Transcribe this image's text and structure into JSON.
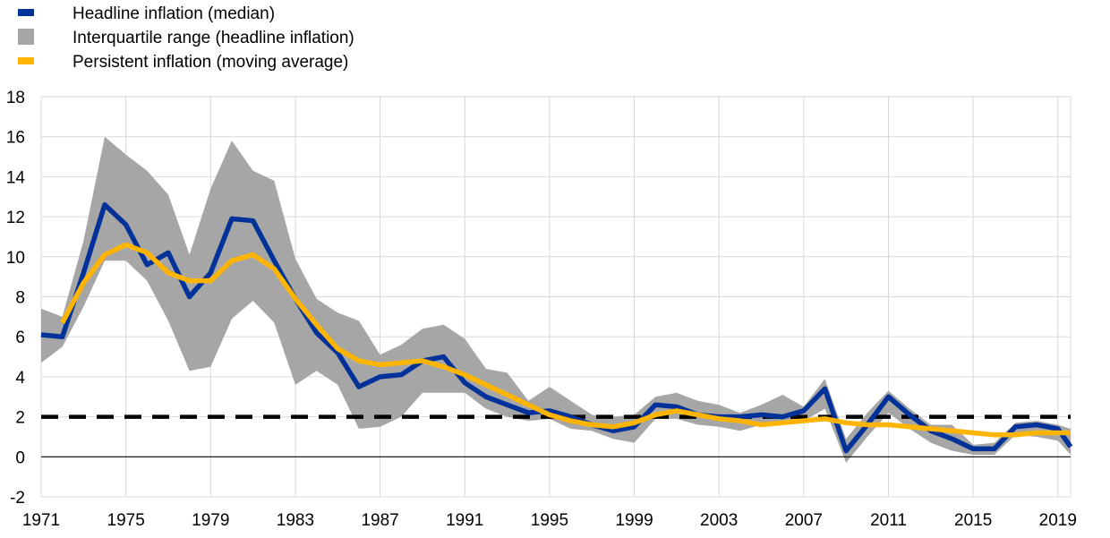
{
  "chart_data": {
    "type": "line",
    "title": "",
    "xlabel": "",
    "ylabel": "",
    "xlim": [
      1971,
      2019.6
    ],
    "ylim": [
      -2,
      18
    ],
    "x_ticks": [
      "1971",
      "1975",
      "1979",
      "1983",
      "1987",
      "1991",
      "1995",
      "1999",
      "2003",
      "2007",
      "2011",
      "2015",
      "2019"
    ],
    "y_ticks": [
      "18",
      "16",
      "14",
      "12",
      "10",
      "8",
      "6",
      "4",
      "2",
      "0",
      "-2"
    ],
    "grid": true,
    "legend_position": "top-left",
    "legend": [
      {
        "label": "Headline inflation (median)",
        "color": "#003299",
        "kind": "line"
      },
      {
        "label": "Interquartile range (headline inflation)",
        "color": "#a6a6a6",
        "kind": "area"
      },
      {
        "label": "Persistent inflation (moving average)",
        "color": "#ffb400",
        "kind": "line"
      }
    ],
    "x": [
      1971,
      1972,
      1973,
      1974,
      1975,
      1976,
      1977,
      1978,
      1979,
      1980,
      1981,
      1982,
      1983,
      1984,
      1985,
      1986,
      1987,
      1988,
      1989,
      1990,
      1991,
      1992,
      1993,
      1994,
      1995,
      1996,
      1997,
      1998,
      1999,
      2000,
      2001,
      2002,
      2003,
      2004,
      2005,
      2006,
      2007,
      2008,
      2009,
      2010,
      2011,
      2012,
      2013,
      2014,
      2015,
      2016,
      2017,
      2018,
      2019,
      2019.6
    ],
    "series": [
      {
        "name": "Interquartile range (headline inflation)",
        "kind": "band",
        "color": "#a6a6a6",
        "upper": [
          7.4,
          7.0,
          10.8,
          16.0,
          15.1,
          14.3,
          13.1,
          10.1,
          13.4,
          15.8,
          14.3,
          13.8,
          9.9,
          7.9,
          7.2,
          6.8,
          5.1,
          5.6,
          6.4,
          6.6,
          5.9,
          4.4,
          4.2,
          2.8,
          3.5,
          2.8,
          2.1,
          2.0,
          2.1,
          3.0,
          3.2,
          2.8,
          2.6,
          2.2,
          2.6,
          3.1,
          2.5,
          3.9,
          0.9,
          2.2,
          3.3,
          2.4,
          1.6,
          1.6,
          0.6,
          0.7,
          1.7,
          1.8,
          1.6,
          1.4
        ],
        "lower": [
          4.7,
          5.5,
          7.5,
          9.8,
          9.8,
          8.8,
          6.8,
          4.3,
          4.5,
          6.9,
          7.8,
          6.7,
          3.6,
          4.3,
          3.6,
          1.4,
          1.5,
          2.0,
          3.2,
          3.2,
          3.2,
          2.4,
          2.0,
          1.8,
          1.9,
          1.4,
          1.3,
          0.9,
          0.7,
          1.9,
          1.9,
          1.6,
          1.5,
          1.3,
          1.6,
          1.7,
          1.8,
          2.4,
          -0.3,
          1.0,
          2.2,
          1.4,
          0.7,
          0.3,
          0.1,
          0.1,
          1.1,
          1.0,
          0.8,
          0.1
        ]
      },
      {
        "name": "Headline inflation (median)",
        "kind": "line",
        "color": "#003299",
        "values": [
          6.1,
          6.0,
          9.2,
          12.6,
          11.6,
          9.6,
          10.2,
          8.0,
          9.2,
          11.9,
          11.8,
          9.8,
          7.9,
          6.2,
          5.2,
          3.5,
          4.0,
          4.1,
          4.8,
          5.0,
          3.7,
          3.0,
          2.6,
          2.2,
          2.3,
          2.0,
          1.6,
          1.3,
          1.5,
          2.6,
          2.5,
          2.1,
          2.0,
          2.0,
          2.1,
          2.0,
          2.3,
          3.4,
          0.3,
          1.6,
          3.0,
          2.1,
          1.3,
          0.9,
          0.4,
          0.4,
          1.5,
          1.6,
          1.4,
          0.5
        ]
      },
      {
        "name": "Persistent inflation (moving average)",
        "kind": "line",
        "color": "#ffb400",
        "x_start": 1972,
        "values": [
          null,
          6.7,
          8.7,
          10.1,
          10.6,
          10.2,
          9.2,
          8.8,
          8.8,
          9.8,
          10.1,
          9.4,
          7.9,
          6.6,
          5.4,
          4.8,
          4.6,
          4.7,
          4.8,
          4.5,
          4.1,
          3.6,
          3.1,
          2.6,
          2.1,
          1.8,
          1.6,
          1.5,
          1.7,
          2.1,
          2.3,
          2.1,
          1.9,
          1.8,
          1.6,
          1.7,
          1.8,
          1.9,
          1.7,
          1.6,
          1.6,
          1.5,
          1.4,
          1.3,
          1.2,
          1.1,
          1.1,
          1.2,
          1.2,
          1.2
        ]
      },
      {
        "name": "",
        "kind": "reference",
        "color": "#000000",
        "style": "dashed",
        "value": 2
      }
    ]
  }
}
